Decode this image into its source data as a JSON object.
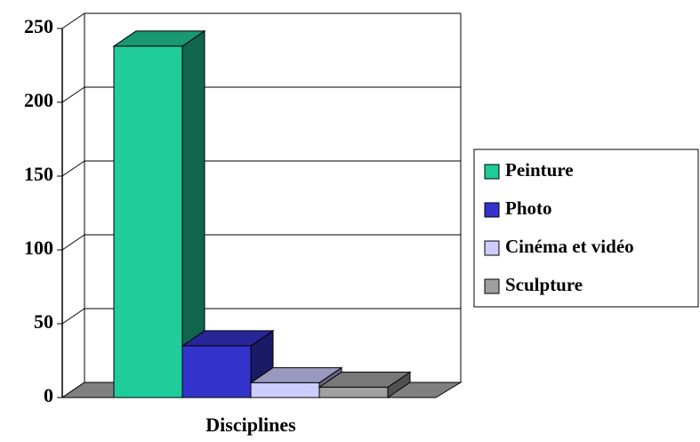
{
  "chart_data": {
    "type": "bar3d",
    "categories": [
      "Disciplines"
    ],
    "series": [
      {
        "name": "Peinture",
        "color": "#1fcc9a",
        "values": [
          238
        ]
      },
      {
        "name": "Photo",
        "color": "#3333cc",
        "values": [
          35
        ]
      },
      {
        "name": "Cinéma et vidéo",
        "color": "#ccccff",
        "values": [
          10
        ]
      },
      {
        "name": "Sculpture",
        "color": "#a0a0a0",
        "values": [
          7
        ]
      }
    ],
    "ylim": [
      0,
      250
    ],
    "yticks": [
      0,
      50,
      100,
      150,
      200,
      250
    ],
    "grid": true,
    "legend": "right"
  }
}
